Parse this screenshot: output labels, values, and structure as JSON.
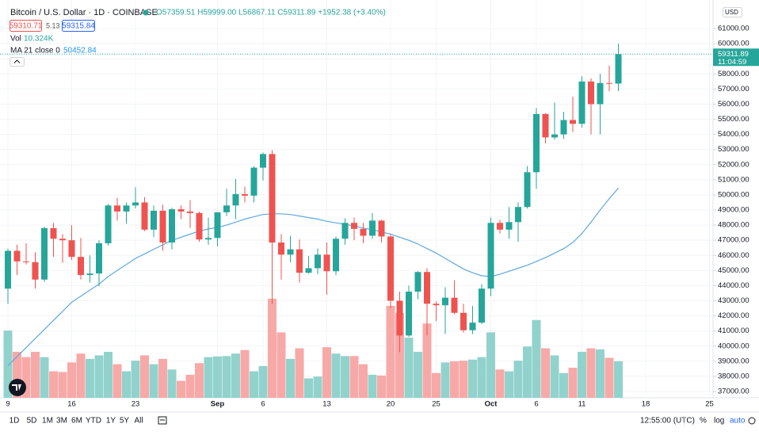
{
  "header": {
    "title": "Bitcoin / U.S. Dollar · 1D · COINBASE",
    "ohlc": "O57359.51 H59999.00 L56867.11 C59311.89 +1952.38 (+3.40%)",
    "bid": "59310.71",
    "spread": "5.13",
    "ask": "59315.84"
  },
  "currency": "USD",
  "countdown": "11:04:59",
  "toolbar": {
    "ranges": [
      "1D",
      "5D",
      "1M",
      "3M",
      "6M",
      "YTD",
      "1Y",
      "5Y",
      "All"
    ],
    "time": "12:55:00 (UTC)",
    "options": [
      "%",
      "log",
      "auto"
    ]
  },
  "chart_data": {
    "type": "candlestick",
    "categories": [
      "9",
      null,
      null,
      null,
      null,
      null,
      null,
      "16",
      null,
      null,
      null,
      null,
      null,
      null,
      "23",
      null,
      null,
      null,
      null,
      null,
      null,
      null,
      null,
      "Sep",
      null,
      null,
      null,
      null,
      "6",
      null,
      null,
      null,
      null,
      null,
      null,
      "13",
      null,
      null,
      null,
      null,
      null,
      null,
      "20",
      null,
      null,
      null,
      null,
      "25",
      null,
      null,
      null,
      null,
      null,
      "Oct",
      null,
      null,
      null,
      null,
      "6",
      null,
      null,
      null,
      null,
      "11",
      null,
      null,
      null,
      null,
      null,
      null,
      "18",
      null,
      null,
      null,
      null,
      null,
      null,
      "25"
    ],
    "open": [
      43800,
      46300,
      45600,
      45550,
      44400,
      47800,
      47100,
      47000,
      45900,
      44700,
      44800,
      46800,
      49300,
      48900,
      49300,
      49500,
      47700,
      48950,
      46850,
      49050,
      48900,
      48800,
      47050,
      47150,
      48850,
      49300,
      50050,
      49950,
      51800,
      52700,
      46850,
      46050,
      46400,
      44850,
      45150,
      46050,
      44950,
      47100,
      48150,
      47750,
      47300,
      48300,
      47250,
      43000,
      40700,
      43600,
      44900,
      42800,
      42700,
      43200,
      42200,
      41050,
      41550,
      43800,
      48150,
      47700,
      48200,
      49200,
      51500,
      55350,
      53800,
      54000,
      54950,
      54700,
      57500,
      56000,
      57400,
      57359.51,
      null,
      null,
      null,
      null,
      null,
      null,
      null,
      null,
      null,
      null
    ],
    "high": [
      46450,
      46700,
      46800,
      46200,
      47900,
      48150,
      47400,
      48000,
      47150,
      46000,
      47000,
      49400,
      49800,
      49500,
      50500,
      49850,
      49300,
      49350,
      49150,
      49300,
      49650,
      48900,
      48500,
      48850,
      50400,
      51050,
      50550,
      51900,
      52800,
      52950,
      47400,
      47300,
      47050,
      45950,
      46450,
      46850,
      47250,
      48450,
      48500,
      48150,
      48800,
      48350,
      47350,
      43600,
      44000,
      44950,
      45150,
      42950,
      43900,
      44350,
      42800,
      42650,
      44100,
      48500,
      48350,
      49200,
      49500,
      51900,
      55750,
      55400,
      56100,
      55500,
      56500,
      57850,
      57700,
      58000,
      58550,
      59999,
      null,
      null,
      null,
      null,
      null,
      null,
      null,
      null,
      null,
      null
    ],
    "low": [
      42800,
      44700,
      45400,
      43800,
      44250,
      45900,
      45500,
      45700,
      44400,
      44200,
      43950,
      46650,
      48300,
      48100,
      49100,
      47600,
      47200,
      46300,
      46400,
      48400,
      47800,
      46900,
      46700,
      46600,
      48600,
      48400,
      49500,
      49500,
      50950,
      42800,
      44400,
      45550,
      44200,
      44800,
      44750,
      43400,
      44700,
      46700,
      47000,
      46800,
      47100,
      46850,
      42500,
      39600,
      40600,
      43100,
      40700,
      41650,
      40800,
      42100,
      40900,
      40800,
      41450,
      43300,
      47450,
      47100,
      46900,
      49100,
      50400,
      53400,
      53650,
      53700,
      54150,
      54450,
      54000,
      54000,
      56850,
      56867.11,
      null,
      null,
      null,
      null,
      null,
      null,
      null,
      null,
      null,
      null
    ],
    "close": [
      46300,
      45600,
      45550,
      44400,
      47800,
      47100,
      47000,
      45900,
      44700,
      44800,
      46800,
      49300,
      48900,
      49300,
      49500,
      47700,
      48950,
      46850,
      49050,
      48900,
      48800,
      47050,
      47150,
      48850,
      49300,
      50050,
      49950,
      51800,
      52700,
      46850,
      46050,
      46400,
      44850,
      45150,
      46050,
      44950,
      47100,
      48150,
      47750,
      47300,
      48300,
      47250,
      43000,
      40700,
      43600,
      44900,
      42800,
      42700,
      43200,
      42200,
      41050,
      41550,
      43800,
      48150,
      47700,
      48200,
      49200,
      51500,
      55350,
      53800,
      54000,
      54950,
      54700,
      57500,
      56000,
      57400,
      57359.51,
      59311.89,
      null,
      null,
      null,
      null,
      null,
      null,
      null,
      null,
      null,
      null
    ],
    "up_color": "#26a69a",
    "down_color": "#ef5350",
    "volume": {
      "name": "Vol",
      "up_color": "#92d2cc",
      "down_color": "#f7a9a7",
      "last_label": "10.324K",
      "values": [
        19.0,
        13.0,
        11.5,
        13.0,
        11.5,
        7.5,
        7.3,
        10.0,
        12.5,
        11.0,
        12.0,
        13.0,
        9.5,
        7.5,
        10.5,
        12.0,
        9.5,
        11.0,
        8.0,
        4.8,
        6.5,
        9.8,
        11.5,
        11.7,
        11.8,
        12.5,
        13.5,
        7.5,
        9.0,
        28.0,
        18.5,
        11.0,
        14.0,
        5.5,
        6.0,
        14.3,
        12.5,
        11.8,
        11.8,
        9.5,
        6.5,
        6.3,
        26.0,
        24.0,
        17.0,
        13.0,
        21.0,
        7.0,
        10.0,
        10.3,
        10.5,
        10.8,
        11.5,
        18.5,
        8.0,
        7.5,
        10.5,
        14.5,
        22.0,
        14.0,
        12.0,
        7.0,
        8.5,
        13.0,
        14.0,
        13.7,
        11.3,
        10.324,
        null,
        null,
        null,
        null,
        null,
        null,
        null,
        null,
        null,
        null
      ]
    },
    "ma": {
      "name": "MA 21 close 0",
      "color": "#5fa8e0",
      "values": [
        38700,
        39300,
        39900,
        40500,
        41100,
        41700,
        42300,
        42900,
        43300,
        43700,
        44100,
        44600,
        45000,
        45400,
        45800,
        46100,
        46400,
        46700,
        47000,
        47200,
        47400,
        47600,
        47750,
        47850,
        48000,
        48200,
        48400,
        48550,
        48700,
        48750,
        48750,
        48700,
        48600,
        48500,
        48400,
        48250,
        48150,
        48050,
        47950,
        47800,
        47700,
        47550,
        47400,
        47200,
        47000,
        46750,
        46450,
        46150,
        45800,
        45450,
        45100,
        44850,
        44650,
        44600,
        44750,
        44950,
        45150,
        45350,
        45600,
        45850,
        46150,
        46450,
        46850,
        47450,
        48200,
        49000,
        49750,
        50452.84,
        null,
        null,
        null,
        null,
        null,
        null,
        null,
        null,
        null,
        null
      ]
    },
    "ylim": [
      36580,
      62470
    ],
    "yticks": [
      {
        "value": 37000,
        "label": "37000.00"
      },
      {
        "value": 38000,
        "label": "38000.00"
      },
      {
        "value": 39000,
        "label": "39000.00"
      },
      {
        "value": 40000,
        "label": "40000.00"
      },
      {
        "value": 41000,
        "label": "41000.00"
      },
      {
        "value": 42000,
        "label": "42000.00"
      },
      {
        "value": 43000,
        "label": "43000.00"
      },
      {
        "value": 44000,
        "label": "44000.00"
      },
      {
        "value": 45000,
        "label": "45000.00"
      },
      {
        "value": 46000,
        "label": "46000.00"
      },
      {
        "value": 47000,
        "label": "47000.00"
      },
      {
        "value": 48000,
        "label": "48000.00"
      },
      {
        "value": 49000,
        "label": "49000.00"
      },
      {
        "value": 50000,
        "label": "50000.00"
      },
      {
        "value": 51000,
        "label": "51000.00"
      },
      {
        "value": 52000,
        "label": "52000.00"
      },
      {
        "value": 53000,
        "label": "53000.00"
      },
      {
        "value": 54000,
        "label": "54000.00"
      },
      {
        "value": 55000,
        "label": "55000.00"
      },
      {
        "value": 56000,
        "label": "56000.00"
      },
      {
        "value": 57000,
        "label": "57000.00"
      },
      {
        "value": 58000,
        "label": "58000.00"
      },
      {
        "value": 59000,
        "label": "59000.00"
      },
      {
        "value": 60000,
        "label": "60000.00"
      },
      {
        "value": 61000,
        "label": "61000.00"
      }
    ],
    "grid": true
  }
}
